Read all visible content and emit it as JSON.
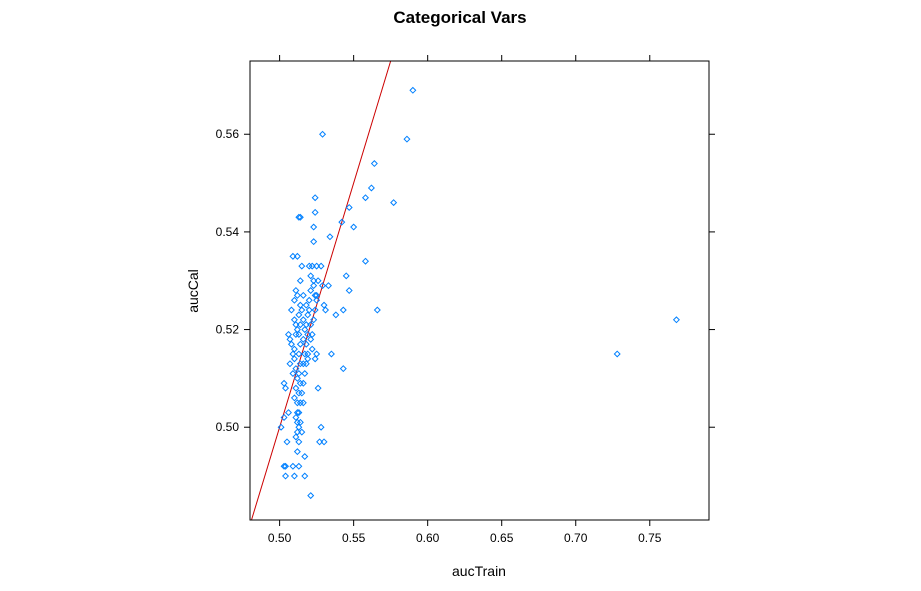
{
  "chart_data": {
    "type": "scatter",
    "title": "Categorical Vars",
    "xlabel": "aucTrain",
    "ylabel": "aucCal",
    "xlim": [
      0.48,
      0.79
    ],
    "ylim": [
      0.481,
      0.575
    ],
    "xticks": [
      0.5,
      0.55,
      0.6,
      0.65,
      0.7,
      0.75
    ],
    "xtick_labels": [
      "0.50",
      "0.55",
      "0.60",
      "0.65",
      "0.70",
      "0.75"
    ],
    "yticks": [
      0.5,
      0.52,
      0.54,
      0.56
    ],
    "ytick_labels": [
      "0.50",
      "0.52",
      "0.54",
      "0.56"
    ],
    "grid": false,
    "point_color": "#0080ff",
    "line_color": "#cc0000",
    "reference_line": {
      "slope": 1,
      "intercept": 0
    },
    "series": [
      {
        "points": [
          [
            0.501,
            0.5
          ],
          [
            0.503,
            0.502
          ],
          [
            0.503,
            0.492
          ],
          [
            0.504,
            0.492
          ],
          [
            0.505,
            0.497
          ],
          [
            0.504,
            0.49
          ],
          [
            0.503,
            0.509
          ],
          [
            0.504,
            0.508
          ],
          [
            0.506,
            0.503
          ],
          [
            0.507,
            0.513
          ],
          [
            0.506,
            0.519
          ],
          [
            0.507,
            0.518
          ],
          [
            0.508,
            0.517
          ],
          [
            0.509,
            0.511
          ],
          [
            0.509,
            0.515
          ],
          [
            0.508,
            0.524
          ],
          [
            0.51,
            0.522
          ],
          [
            0.51,
            0.526
          ],
          [
            0.511,
            0.528
          ],
          [
            0.509,
            0.535
          ],
          [
            0.512,
            0.535
          ],
          [
            0.511,
            0.521
          ],
          [
            0.512,
            0.52
          ],
          [
            0.511,
            0.519
          ],
          [
            0.51,
            0.516
          ],
          [
            0.51,
            0.514
          ],
          [
            0.511,
            0.512
          ],
          [
            0.512,
            0.51
          ],
          [
            0.511,
            0.508
          ],
          [
            0.51,
            0.506
          ],
          [
            0.512,
            0.505
          ],
          [
            0.512,
            0.503
          ],
          [
            0.511,
            0.502
          ],
          [
            0.512,
            0.501
          ],
          [
            0.513,
            0.5
          ],
          [
            0.512,
            0.499
          ],
          [
            0.511,
            0.498
          ],
          [
            0.513,
            0.497
          ],
          [
            0.512,
            0.495
          ],
          [
            0.509,
            0.492
          ],
          [
            0.513,
            0.492
          ],
          [
            0.51,
            0.49
          ],
          [
            0.513,
            0.543
          ],
          [
            0.514,
            0.543
          ],
          [
            0.512,
            0.527
          ],
          [
            0.514,
            0.525
          ],
          [
            0.513,
            0.523
          ],
          [
            0.514,
            0.521
          ],
          [
            0.513,
            0.519
          ],
          [
            0.514,
            0.517
          ],
          [
            0.513,
            0.515
          ],
          [
            0.514,
            0.513
          ],
          [
            0.513,
            0.511
          ],
          [
            0.514,
            0.509
          ],
          [
            0.513,
            0.507
          ],
          [
            0.514,
            0.505
          ],
          [
            0.513,
            0.503
          ],
          [
            0.514,
            0.501
          ],
          [
            0.515,
            0.499
          ],
          [
            0.514,
            0.53
          ],
          [
            0.515,
            0.533
          ],
          [
            0.516,
            0.527
          ],
          [
            0.515,
            0.524
          ],
          [
            0.516,
            0.522
          ],
          [
            0.517,
            0.52
          ],
          [
            0.516,
            0.518
          ],
          [
            0.517,
            0.515
          ],
          [
            0.516,
            0.513
          ],
          [
            0.517,
            0.511
          ],
          [
            0.516,
            0.509
          ],
          [
            0.515,
            0.507
          ],
          [
            0.516,
            0.505
          ],
          [
            0.517,
            0.494
          ],
          [
            0.517,
            0.49
          ],
          [
            0.518,
            0.525
          ],
          [
            0.519,
            0.523
          ],
          [
            0.518,
            0.521
          ],
          [
            0.519,
            0.519
          ],
          [
            0.518,
            0.517
          ],
          [
            0.519,
            0.515
          ],
          [
            0.518,
            0.513
          ],
          [
            0.519,
            0.514
          ],
          [
            0.52,
            0.526
          ],
          [
            0.52,
            0.533
          ],
          [
            0.521,
            0.531
          ],
          [
            0.522,
            0.533
          ],
          [
            0.521,
            0.528
          ],
          [
            0.52,
            0.524
          ],
          [
            0.521,
            0.521
          ],
          [
            0.522,
            0.519
          ],
          [
            0.521,
            0.518
          ],
          [
            0.523,
            0.522
          ],
          [
            0.522,
            0.516
          ],
          [
            0.521,
            0.486
          ],
          [
            0.523,
            0.538
          ],
          [
            0.523,
            0.541
          ],
          [
            0.524,
            0.544
          ],
          [
            0.524,
            0.547
          ],
          [
            0.523,
            0.529
          ],
          [
            0.524,
            0.527
          ],
          [
            0.525,
            0.526
          ],
          [
            0.524,
            0.524
          ],
          [
            0.523,
            0.53
          ],
          [
            0.525,
            0.533
          ],
          [
            0.526,
            0.53
          ],
          [
            0.525,
            0.527
          ],
          [
            0.524,
            0.514
          ],
          [
            0.525,
            0.515
          ],
          [
            0.526,
            0.508
          ],
          [
            0.527,
            0.497
          ],
          [
            0.528,
            0.5
          ],
          [
            0.528,
            0.533
          ],
          [
            0.529,
            0.529
          ],
          [
            0.53,
            0.525
          ],
          [
            0.531,
            0.524
          ],
          [
            0.529,
            0.56
          ],
          [
            0.53,
            0.497
          ],
          [
            0.533,
            0.529
          ],
          [
            0.534,
            0.539
          ],
          [
            0.535,
            0.515
          ],
          [
            0.538,
            0.523
          ],
          [
            0.542,
            0.542
          ],
          [
            0.543,
            0.524
          ],
          [
            0.543,
            0.512
          ],
          [
            0.545,
            0.531
          ],
          [
            0.547,
            0.528
          ],
          [
            0.547,
            0.545
          ],
          [
            0.55,
            0.541
          ],
          [
            0.558,
            0.534
          ],
          [
            0.558,
            0.547
          ],
          [
            0.562,
            0.549
          ],
          [
            0.564,
            0.554
          ],
          [
            0.566,
            0.524
          ],
          [
            0.577,
            0.546
          ],
          [
            0.586,
            0.559
          ],
          [
            0.59,
            0.569
          ],
          [
            0.728,
            0.515
          ],
          [
            0.768,
            0.522
          ]
        ]
      }
    ]
  }
}
